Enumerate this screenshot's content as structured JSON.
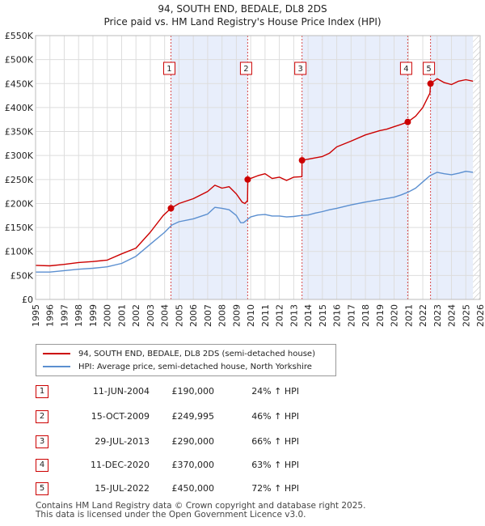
{
  "chart_data": {
    "type": "line",
    "title": "94, SOUTH END, BEDALE, DL8 2DS",
    "subtitle": "Price paid vs. HM Land Registry's House Price Index (HPI)",
    "xlabel": "",
    "ylabel": "",
    "xlim": [
      1995,
      2026
    ],
    "ylim": [
      0,
      550000
    ],
    "y_ticks": [
      0,
      50000,
      100000,
      150000,
      200000,
      250000,
      300000,
      350000,
      400000,
      450000,
      500000,
      550000
    ],
    "y_tick_labels": [
      "£0",
      "£50K",
      "£100K",
      "£150K",
      "£200K",
      "£250K",
      "£300K",
      "£350K",
      "£400K",
      "£450K",
      "£500K",
      "£550K"
    ],
    "x_ticks": [
      1995,
      1996,
      1997,
      1998,
      1999,
      2000,
      2001,
      2002,
      2003,
      2004,
      2005,
      2006,
      2007,
      2008,
      2009,
      2010,
      2011,
      2012,
      2013,
      2014,
      2015,
      2016,
      2017,
      2018,
      2019,
      2020,
      2021,
      2022,
      2023,
      2024,
      2025,
      2026
    ],
    "grid": true,
    "series": [
      {
        "name": "94, SOUTH END, BEDALE, DL8 2DS (semi-detached house)",
        "color": "#cc0000",
        "points": [
          [
            1995.0,
            71000
          ],
          [
            1996.0,
            70000
          ],
          [
            1997.0,
            73000
          ],
          [
            1998.0,
            77000
          ],
          [
            1999.0,
            79000
          ],
          [
            2000.0,
            82000
          ],
          [
            2001.0,
            95000
          ],
          [
            2002.0,
            107000
          ],
          [
            2003.0,
            140000
          ],
          [
            2003.9,
            175000
          ],
          [
            2004.44,
            190000
          ],
          [
            2005.0,
            200000
          ],
          [
            2006.0,
            210000
          ],
          [
            2007.0,
            225000
          ],
          [
            2007.5,
            238000
          ],
          [
            2008.0,
            232000
          ],
          [
            2008.5,
            235000
          ],
          [
            2009.0,
            220000
          ],
          [
            2009.4,
            203000
          ],
          [
            2009.6,
            200000
          ],
          [
            2009.78,
            206000
          ],
          [
            2009.8,
            249995
          ],
          [
            2010.5,
            258000
          ],
          [
            2011.0,
            262000
          ],
          [
            2011.5,
            252000
          ],
          [
            2012.0,
            255000
          ],
          [
            2012.5,
            248000
          ],
          [
            2013.0,
            255000
          ],
          [
            2013.57,
            256000
          ],
          [
            2013.58,
            290000
          ],
          [
            2014.5,
            295000
          ],
          [
            2015.0,
            298000
          ],
          [
            2015.5,
            305000
          ],
          [
            2016.0,
            318000
          ],
          [
            2017.0,
            330000
          ],
          [
            2018.0,
            343000
          ],
          [
            2019.0,
            352000
          ],
          [
            2019.5,
            355000
          ],
          [
            2020.0,
            360000
          ],
          [
            2020.5,
            365000
          ],
          [
            2020.95,
            370000
          ],
          [
            2021.5,
            382000
          ],
          [
            2022.0,
            400000
          ],
          [
            2022.5,
            430000
          ],
          [
            2022.54,
            450000
          ],
          [
            2023.0,
            460000
          ],
          [
            2023.5,
            452000
          ],
          [
            2024.0,
            448000
          ],
          [
            2024.5,
            455000
          ],
          [
            2025.0,
            458000
          ],
          [
            2025.5,
            455000
          ]
        ]
      },
      {
        "name": "HPI: Average price, semi-detached house, North Yorkshire",
        "color": "#5b8fd0",
        "points": [
          [
            1995.0,
            57000
          ],
          [
            1996.0,
            57000
          ],
          [
            1997.0,
            60000
          ],
          [
            1998.0,
            63000
          ],
          [
            1999.0,
            65000
          ],
          [
            2000.0,
            68000
          ],
          [
            2001.0,
            75000
          ],
          [
            2002.0,
            90000
          ],
          [
            2003.0,
            115000
          ],
          [
            2004.0,
            140000
          ],
          [
            2004.5,
            155000
          ],
          [
            2005.0,
            162000
          ],
          [
            2006.0,
            168000
          ],
          [
            2007.0,
            178000
          ],
          [
            2007.5,
            192000
          ],
          [
            2008.0,
            190000
          ],
          [
            2008.5,
            187000
          ],
          [
            2009.0,
            175000
          ],
          [
            2009.3,
            160000
          ],
          [
            2009.5,
            160000
          ],
          [
            2010.0,
            172000
          ],
          [
            2010.5,
            176000
          ],
          [
            2011.0,
            177000
          ],
          [
            2011.5,
            174000
          ],
          [
            2012.0,
            174000
          ],
          [
            2012.5,
            172000
          ],
          [
            2013.0,
            173000
          ],
          [
            2013.5,
            175000
          ],
          [
            2014.0,
            176000
          ],
          [
            2014.5,
            180000
          ],
          [
            2015.0,
            183000
          ],
          [
            2015.5,
            187000
          ],
          [
            2016.0,
            190000
          ],
          [
            2017.0,
            197000
          ],
          [
            2018.0,
            203000
          ],
          [
            2019.0,
            208000
          ],
          [
            2020.0,
            213000
          ],
          [
            2020.5,
            218000
          ],
          [
            2021.0,
            224000
          ],
          [
            2021.5,
            232000
          ],
          [
            2022.0,
            245000
          ],
          [
            2022.5,
            258000
          ],
          [
            2023.0,
            265000
          ],
          [
            2023.5,
            262000
          ],
          [
            2024.0,
            260000
          ],
          [
            2024.5,
            263000
          ],
          [
            2025.0,
            267000
          ],
          [
            2025.5,
            265000
          ]
        ]
      }
    ],
    "events": [
      {
        "label": "1",
        "x": 2004.44,
        "y": 190000
      },
      {
        "label": "2",
        "x": 2009.79,
        "y": 249995
      },
      {
        "label": "3",
        "x": 2013.58,
        "y": 290000
      },
      {
        "label": "4",
        "x": 2020.95,
        "y": 370000
      },
      {
        "label": "5",
        "x": 2022.54,
        "y": 450000
      }
    ],
    "future_hatch_start": 2025.5
  },
  "legend": {
    "items": [
      {
        "label": "94, SOUTH END, BEDALE, DL8 2DS (semi-detached house)",
        "color": "#cc0000"
      },
      {
        "label": "HPI: Average price, semi-detached house, North Yorkshire",
        "color": "#5b8fd0"
      }
    ]
  },
  "sales": [
    {
      "num": "1",
      "date": "11-JUN-2004",
      "price": "£190,000",
      "hpi": "24% ↑ HPI"
    },
    {
      "num": "2",
      "date": "15-OCT-2009",
      "price": "£249,995",
      "hpi": "46% ↑ HPI"
    },
    {
      "num": "3",
      "date": "29-JUL-2013",
      "price": "£290,000",
      "hpi": "66% ↑ HPI"
    },
    {
      "num": "4",
      "date": "11-DEC-2020",
      "price": "£370,000",
      "hpi": "63% ↑ HPI"
    },
    {
      "num": "5",
      "date": "15-JUL-2022",
      "price": "£450,000",
      "hpi": "72% ↑ HPI"
    }
  ],
  "footer": {
    "line1": "Contains HM Land Registry data © Crown copyright and database right 2025.",
    "line2": "This data is licensed under the Open Government Licence v3.0."
  }
}
